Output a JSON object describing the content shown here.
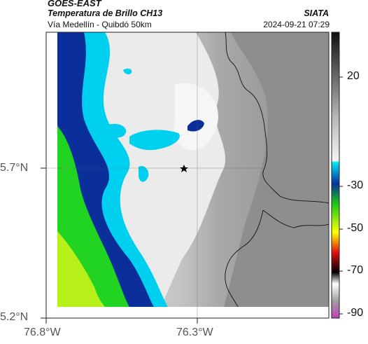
{
  "header": {
    "satellite": "GOES-EAST",
    "product": "Temperatura de Brillo CH13",
    "route": "Vía Medellín - Quibdó 50km",
    "source": "SIATA",
    "timestamp": "2024-09-21 07:29"
  },
  "axes": {
    "lat_labels": [
      "5.7°N",
      "5.2°N"
    ],
    "lon_labels": [
      "76.8°W",
      "76.3°W"
    ]
  },
  "colorbar": {
    "ticks": [
      "20",
      "-30",
      "-50",
      "-70",
      "-90"
    ],
    "colors": {
      "dark": "#1a1a1a",
      "gray": "#8a8a8a",
      "light": "#f2f2f2",
      "cyan": "#00d8f0",
      "blue": "#0a2f9a",
      "green": "#18c818",
      "yellow": "#ffff00",
      "red": "#e01010",
      "black": "#000000",
      "magenta": "#c040c0"
    }
  },
  "map": {
    "marker": "star-icon",
    "colors": {
      "cloud_free": "#8c8c8c",
      "warm_cloud": "#e8e8e8",
      "cold_cloud": "#00d0f0",
      "deep_cloud": "#0a2f9a",
      "very_cold": "#22d422"
    }
  }
}
